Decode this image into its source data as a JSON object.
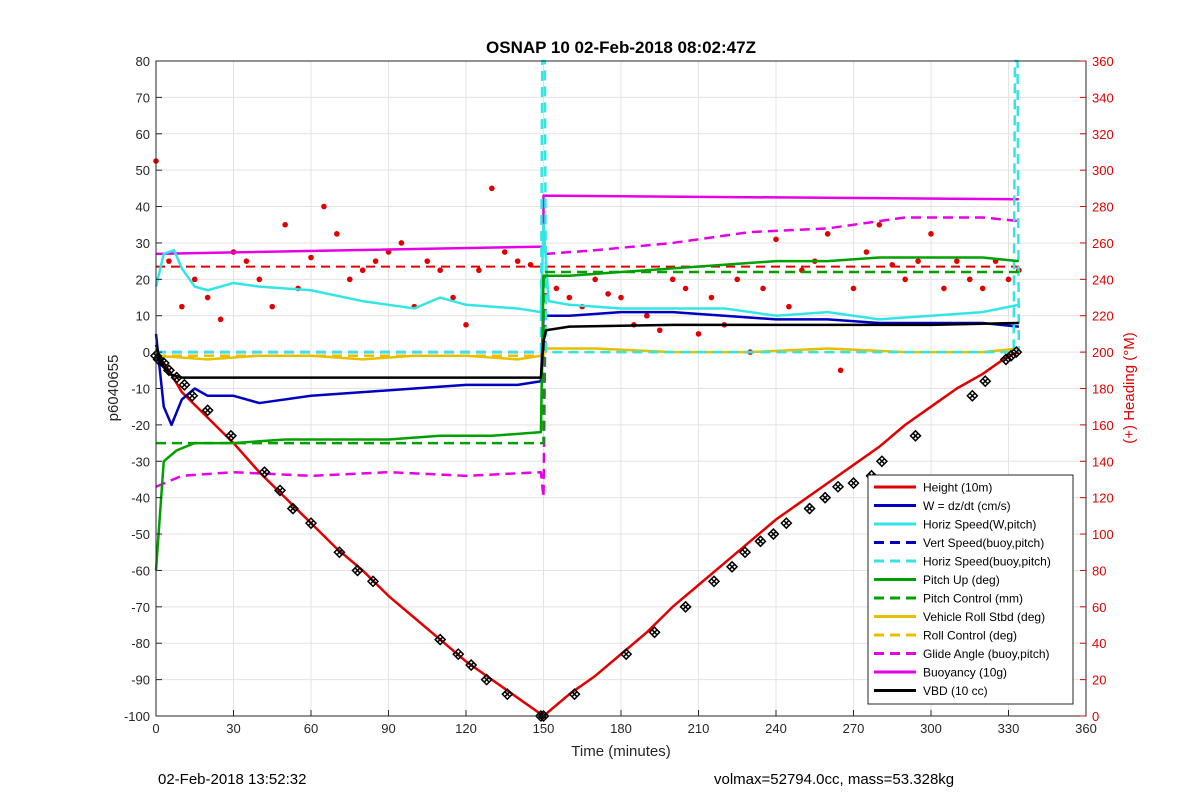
{
  "chart_data": {
    "type": "line",
    "title": "OSNAP 10 02-Feb-2018 08:02:47Z",
    "xlabel": "Time (minutes)",
    "ylabel_left": "p6040655",
    "ylabel_right": "(+) Heading (°M)",
    "xlim": [
      0,
      360
    ],
    "ylim_left": [
      -100,
      80
    ],
    "ylim_right": [
      0,
      360
    ],
    "xticks": [
      0,
      30,
      60,
      90,
      120,
      150,
      180,
      210,
      240,
      270,
      300,
      330,
      360
    ],
    "yticks_left": [
      -100,
      -90,
      -80,
      -70,
      -60,
      -50,
      -40,
      -30,
      -20,
      -10,
      0,
      10,
      20,
      30,
      40,
      50,
      60,
      70,
      80
    ],
    "yticks_right": [
      0,
      20,
      40,
      60,
      80,
      100,
      120,
      140,
      160,
      180,
      200,
      220,
      240,
      260,
      280,
      300,
      320,
      340,
      360
    ],
    "grid": true,
    "legend_position": "bottom-right",
    "colors": {
      "red": "#e00000",
      "blue": "#0000c0",
      "cyan": "#33e6e6",
      "green": "#00a000",
      "yellow": "#e6c000",
      "magenta": "#e600e6",
      "black": "#000000"
    },
    "series": [
      {
        "name": "Height (10m)",
        "color": "#e00000",
        "style": "solid",
        "axis": "left",
        "x": [
          0,
          5,
          10,
          20,
          30,
          40,
          50,
          60,
          70,
          80,
          90,
          100,
          110,
          120,
          130,
          140,
          150,
          160,
          170,
          180,
          190,
          200,
          210,
          220,
          230,
          240,
          250,
          260,
          270,
          280,
          290,
          300,
          310,
          320,
          330,
          334
        ],
        "y": [
          0,
          -5,
          -11,
          -18,
          -25,
          -33,
          -40,
          -47,
          -54,
          -60,
          -67,
          -73,
          -79,
          -85,
          -90,
          -95,
          -100,
          -94,
          -89,
          -83,
          -77,
          -70,
          -64,
          -58,
          -52,
          -46,
          -41,
          -36,
          -31,
          -26,
          -20,
          -15,
          -10,
          -6,
          -1,
          0
        ]
      },
      {
        "name": "W = dz/dt (cm/s)",
        "color": "#0000c0",
        "style": "solid",
        "axis": "left",
        "x": [
          0,
          3,
          6,
          10,
          15,
          20,
          30,
          40,
          60,
          80,
          100,
          120,
          140,
          149,
          150,
          160,
          180,
          200,
          220,
          240,
          260,
          280,
          300,
          320,
          334
        ],
        "y": [
          5,
          -15,
          -20,
          -13,
          -10,
          -12,
          -12,
          -14,
          -12,
          -11,
          -10,
          -9,
          -9,
          -8,
          10,
          10,
          11,
          11,
          10,
          9,
          9,
          8,
          8,
          8,
          7
        ]
      },
      {
        "name": "Horiz Speed(W,pitch)",
        "color": "#33e6e6",
        "style": "solid",
        "axis": "left",
        "x": [
          0,
          3,
          7,
          10,
          15,
          20,
          30,
          40,
          60,
          80,
          100,
          110,
          120,
          140,
          149,
          150,
          152,
          160,
          180,
          200,
          220,
          240,
          260,
          280,
          300,
          320,
          334
        ],
        "y": [
          18,
          27,
          28,
          23,
          18,
          17,
          19,
          18,
          17,
          14,
          12,
          15,
          13,
          12,
          11,
          35,
          14,
          13,
          12,
          12,
          12,
          10,
          11,
          9,
          10,
          11,
          13
        ]
      },
      {
        "name": "Vert Speed(buoy,pitch)",
        "color": "#0000c0",
        "style": "dashed",
        "axis": "left",
        "x": [
          0,
          150
        ],
        "y": [
          0,
          0
        ]
      },
      {
        "name": "Horiz Speed(buoy,pitch)",
        "color": "#33e6e6",
        "style": "dashed",
        "axis": "left",
        "x": [
          0,
          149,
          149.5,
          150.5,
          151,
          332,
          332.5,
          333.5,
          334
        ],
        "y": [
          0,
          0,
          80,
          80,
          0,
          0,
          80,
          80,
          0
        ]
      },
      {
        "name": "Pitch Up (deg)",
        "color": "#00a000",
        "style": "solid",
        "axis": "left",
        "x": [
          0,
          3,
          8,
          15,
          30,
          50,
          70,
          90,
          110,
          130,
          149,
          150,
          160,
          180,
          200,
          220,
          240,
          260,
          280,
          300,
          320,
          334
        ],
        "y": [
          -60,
          -30,
          -27,
          -25,
          -25,
          -24,
          -24,
          -24,
          -23,
          -23,
          -22,
          21,
          21,
          22,
          23,
          24,
          25,
          25,
          26,
          26,
          26,
          25
        ]
      },
      {
        "name": "Pitch Control (mm)",
        "color": "#00a000",
        "style": "dashed",
        "axis": "left",
        "x": [
          0,
          150,
          150,
          334
        ],
        "y": [
          -25,
          -25,
          22,
          22
        ]
      },
      {
        "name": "Vehicle Roll Stbd (deg)",
        "color": "#e6c000",
        "style": "solid",
        "axis": "left",
        "x": [
          0,
          20,
          40,
          60,
          80,
          100,
          120,
          140,
          149,
          150,
          170,
          200,
          230,
          260,
          290,
          320,
          334
        ],
        "y": [
          -1,
          -2,
          -1,
          -1,
          -2,
          -1,
          -1,
          -2,
          -1,
          1,
          1,
          0,
          0,
          1,
          0,
          0,
          1
        ]
      },
      {
        "name": "Roll Control (deg)",
        "color": "#e6c000",
        "style": "dashed",
        "axis": "left",
        "x": [
          0,
          150,
          150,
          334
        ],
        "y": [
          -1,
          -1,
          0,
          0
        ]
      },
      {
        "name": "Glide Angle (buoy,pitch)",
        "color": "#e600e6",
        "style": "dashed",
        "axis": "left",
        "x": [
          0,
          10,
          30,
          60,
          90,
          120,
          149,
          150,
          151,
          170,
          200,
          230,
          260,
          290,
          320,
          334
        ],
        "y": [
          -37,
          -34,
          -33,
          -34,
          -33,
          -34,
          -33,
          -40,
          27,
          28,
          30,
          33,
          34,
          37,
          37,
          36
        ]
      },
      {
        "name": "Buoyancy (10g)",
        "color": "#e600e6",
        "style": "solid",
        "axis": "left",
        "x": [
          0,
          150,
          150,
          334
        ],
        "y": [
          27,
          29,
          43,
          42
        ]
      },
      {
        "name": "VBD (10 cc)",
        "color": "#000000",
        "style": "solid",
        "axis": "left",
        "x": [
          0,
          2,
          5,
          10,
          30,
          60,
          100,
          149,
          150,
          151,
          160,
          200,
          250,
          300,
          334
        ],
        "y": [
          2,
          -3,
          -6,
          -7,
          -7,
          -7,
          -7,
          -7,
          3,
          6,
          7,
          7.5,
          7.5,
          7.5,
          8
        ]
      }
    ],
    "heading": {
      "color": "#e00000",
      "axis": "right",
      "target_x": [
        0,
        334
      ],
      "target_y": [
        247,
        247
      ],
      "x": [
        0,
        5,
        10,
        15,
        20,
        25,
        30,
        35,
        40,
        45,
        50,
        55,
        60,
        65,
        70,
        75,
        80,
        85,
        90,
        95,
        100,
        105,
        110,
        115,
        120,
        125,
        130,
        135,
        140,
        145,
        150,
        155,
        160,
        165,
        170,
        175,
        180,
        185,
        190,
        195,
        200,
        205,
        210,
        215,
        220,
        225,
        230,
        235,
        240,
        245,
        250,
        255,
        260,
        265,
        270,
        275,
        280,
        285,
        290,
        295,
        300,
        305,
        310,
        315,
        320,
        325,
        330,
        334
      ],
      "y": [
        305,
        250,
        225,
        240,
        230,
        218,
        255,
        250,
        240,
        225,
        270,
        235,
        252,
        280,
        265,
        240,
        245,
        250,
        255,
        260,
        225,
        250,
        245,
        230,
        215,
        245,
        290,
        255,
        250,
        248,
        240,
        235,
        230,
        225,
        240,
        232,
        230,
        215,
        220,
        212,
        240,
        235,
        210,
        230,
        215,
        240,
        200,
        235,
        262,
        225,
        245,
        250,
        265,
        190,
        235,
        255,
        270,
        248,
        240,
        250,
        265,
        235,
        250,
        240,
        235,
        250,
        240,
        245
      ]
    },
    "markers": {
      "color": "#000000",
      "x": [
        0,
        1,
        3,
        5,
        8,
        11,
        14,
        20,
        29,
        42,
        48,
        53,
        60,
        71,
        78,
        84,
        110,
        117,
        122,
        128,
        136,
        149,
        150,
        162,
        182,
        193,
        205,
        216,
        223,
        228,
        234,
        239,
        244,
        253,
        259,
        264,
        270,
        277,
        281,
        294,
        316,
        321,
        329,
        331,
        333
      ],
      "y": [
        -1,
        -2,
        -3,
        -5,
        -7,
        -9,
        -12,
        -16,
        -23,
        -33,
        -38,
        -43,
        -47,
        -55,
        -60,
        -63,
        -79,
        -83,
        -86,
        -90,
        -94,
        -100,
        -100,
        -94,
        -83,
        -77,
        -70,
        -63,
        -59,
        -55,
        -52,
        -50,
        -47,
        -43,
        -40,
        -37,
        -36,
        -34,
        -30,
        -23,
        -12,
        -8,
        -2,
        -1,
        0
      ]
    }
  },
  "footer": {
    "left": "02-Feb-2018 13:52:32",
    "right": "volmax=52794.0cc, mass=53.328kg"
  }
}
